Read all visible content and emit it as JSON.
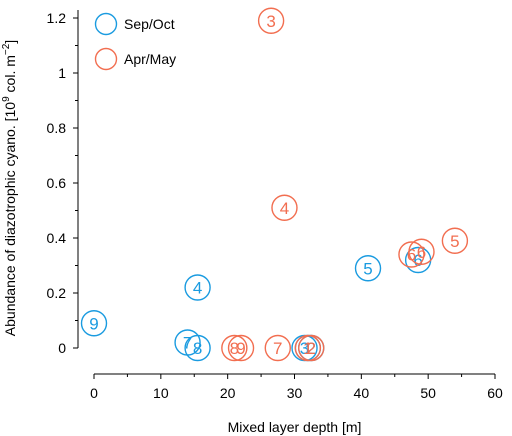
{
  "chart_data": {
    "type": "scatter",
    "xlabel": "Mixed layer depth [m]",
    "ylabel_main": "Abundance of diazotrophic cyano. [10",
    "ylabel_exp": "9",
    "ylabel_mid": " col. m",
    "ylabel_exp2": "−2",
    "ylabel_end": "]",
    "xlim": [
      0,
      60
    ],
    "ylim": [
      0,
      1.2
    ],
    "x_ticks": [
      "0",
      "10",
      "20",
      "30",
      "40",
      "50",
      "60"
    ],
    "y_ticks": [
      "0",
      "0.2",
      "0.4",
      "0.6",
      "0.8",
      "1",
      "1.2"
    ],
    "legend_position": "top-left",
    "series": [
      {
        "name": "Sep/Oct",
        "color": "#1a9be0",
        "points": [
          {
            "x": 0,
            "y": 0.09,
            "label": "9"
          },
          {
            "x": 14,
            "y": 0.02,
            "label": "7"
          },
          {
            "x": 15.5,
            "y": 0.0,
            "label": "8"
          },
          {
            "x": 15.5,
            "y": 0.22,
            "label": "4"
          },
          {
            "x": 31.5,
            "y": 0.0,
            "label": "3"
          },
          {
            "x": 32,
            "y": 0.0,
            "label": "1"
          },
          {
            "x": 32.5,
            "y": 0.0,
            "label": "2"
          },
          {
            "x": 41,
            "y": 0.29,
            "label": "5"
          },
          {
            "x": 48.5,
            "y": 0.32,
            "label": "6"
          }
        ]
      },
      {
        "name": "Apr/May",
        "color": "#f26e50",
        "points": [
          {
            "x": 21,
            "y": 0.0,
            "label": "8"
          },
          {
            "x": 22,
            "y": 0.0,
            "label": "9"
          },
          {
            "x": 26.5,
            "y": 1.19,
            "label": "3"
          },
          {
            "x": 27.5,
            "y": 0.0,
            "label": "7"
          },
          {
            "x": 28.5,
            "y": 0.51,
            "label": "4"
          },
          {
            "x": 32,
            "y": 0.0,
            "label": "1"
          },
          {
            "x": 32.5,
            "y": 0.0,
            "label": "2"
          },
          {
            "x": 47.5,
            "y": 0.34,
            "label": "6"
          },
          {
            "x": 49,
            "y": 0.35,
            "label": "6"
          },
          {
            "x": 54,
            "y": 0.39,
            "label": "5"
          }
        ]
      }
    ]
  }
}
